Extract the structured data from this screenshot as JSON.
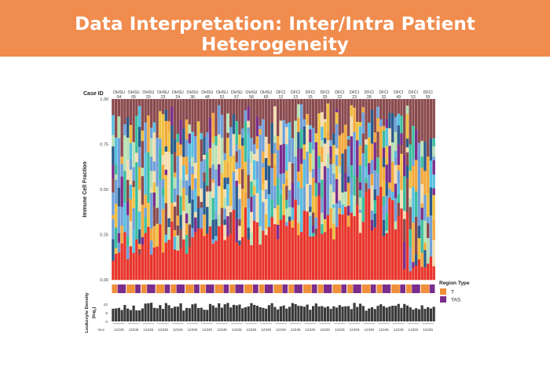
{
  "slide": {
    "title": "Data Interpretation: Inter/Intra Patient Heterogeneity"
  },
  "chart_data": {
    "type": "bar",
    "stacked": true,
    "case_id_label": "Case ID",
    "ylabel": "Immune Cell Fraction",
    "ylim": [
      0,
      1
    ],
    "yticks": [
      "0.00",
      "0.25",
      "0.50",
      "0.75",
      "1.00"
    ],
    "region_type_legend": {
      "title": "Region Type",
      "entries": [
        {
          "label": "T",
          "color": "#f0903a"
        },
        {
          "label": "TAS",
          "color": "#7a2d8c"
        }
      ]
    },
    "density_panel": {
      "ylabel_line1": "Leukocyte Density",
      "ylabel_line2": "(log",
      "ylabel_sub": "2",
      "ylabel_close": ")",
      "yticks": [
        "10",
        "5",
        "0"
      ],
      "row_label": "Ince",
      "sample_labels": "12345"
    },
    "cell_type_palette": [
      "#e8352b",
      "#6fa0d8",
      "#f2ddb0",
      "#f2a93b",
      "#7a2d8c",
      "#8a4a4e",
      "#56bfe0",
      "#2a5b8c",
      "#3bbf9e",
      "#b7e0b2",
      "#f0c040"
    ],
    "cases": [
      {
        "case_line1": "OHSU",
        "case_line2": "04",
        "n": 5
      },
      {
        "case_line1": "OHSU",
        "case_line2": "05",
        "n": 5
      },
      {
        "case_line1": "OHSU",
        "case_line2": "20",
        "n": 5
      },
      {
        "case_line1": "OHSU",
        "case_line2": "23",
        "n": 5
      },
      {
        "case_line1": "OHSU",
        "case_line2": "24",
        "n": 5
      },
      {
        "case_line1": "OHSU",
        "case_line2": "36",
        "n": 5
      },
      {
        "case_line1": "OHSU",
        "case_line2": "48",
        "n": 5
      },
      {
        "case_line1": "OHSU",
        "case_line2": "52",
        "n": 5
      },
      {
        "case_line1": "OHSU",
        "case_line2": "57",
        "n": 5
      },
      {
        "case_line1": "OHSU",
        "case_line2": "58",
        "n": 5
      },
      {
        "case_line1": "OHSU",
        "case_line2": "60",
        "n": 5
      },
      {
        "case_line1": "DFCI",
        "case_line2": "12",
        "n": 5
      },
      {
        "case_line1": "DFCI",
        "case_line2": "13",
        "n": 5
      },
      {
        "case_line1": "DFCI",
        "case_line2": "15",
        "n": 5
      },
      {
        "case_line1": "DFCI",
        "case_line2": "20",
        "n": 5
      },
      {
        "case_line1": "DFCI",
        "case_line2": "22",
        "n": 5
      },
      {
        "case_line1": "DFCI",
        "case_line2": "23",
        "n": 5
      },
      {
        "case_line1": "DFCI",
        "case_line2": "28",
        "n": 5
      },
      {
        "case_line1": "DFCI",
        "case_line2": "32",
        "n": 5
      },
      {
        "case_line1": "DFCI",
        "case_line2": "49",
        "n": 5
      },
      {
        "case_line1": "DFCI",
        "case_line2": "53",
        "n": 5
      },
      {
        "case_line1": "DFCI",
        "case_line2": "55",
        "n": 5
      }
    ]
  }
}
